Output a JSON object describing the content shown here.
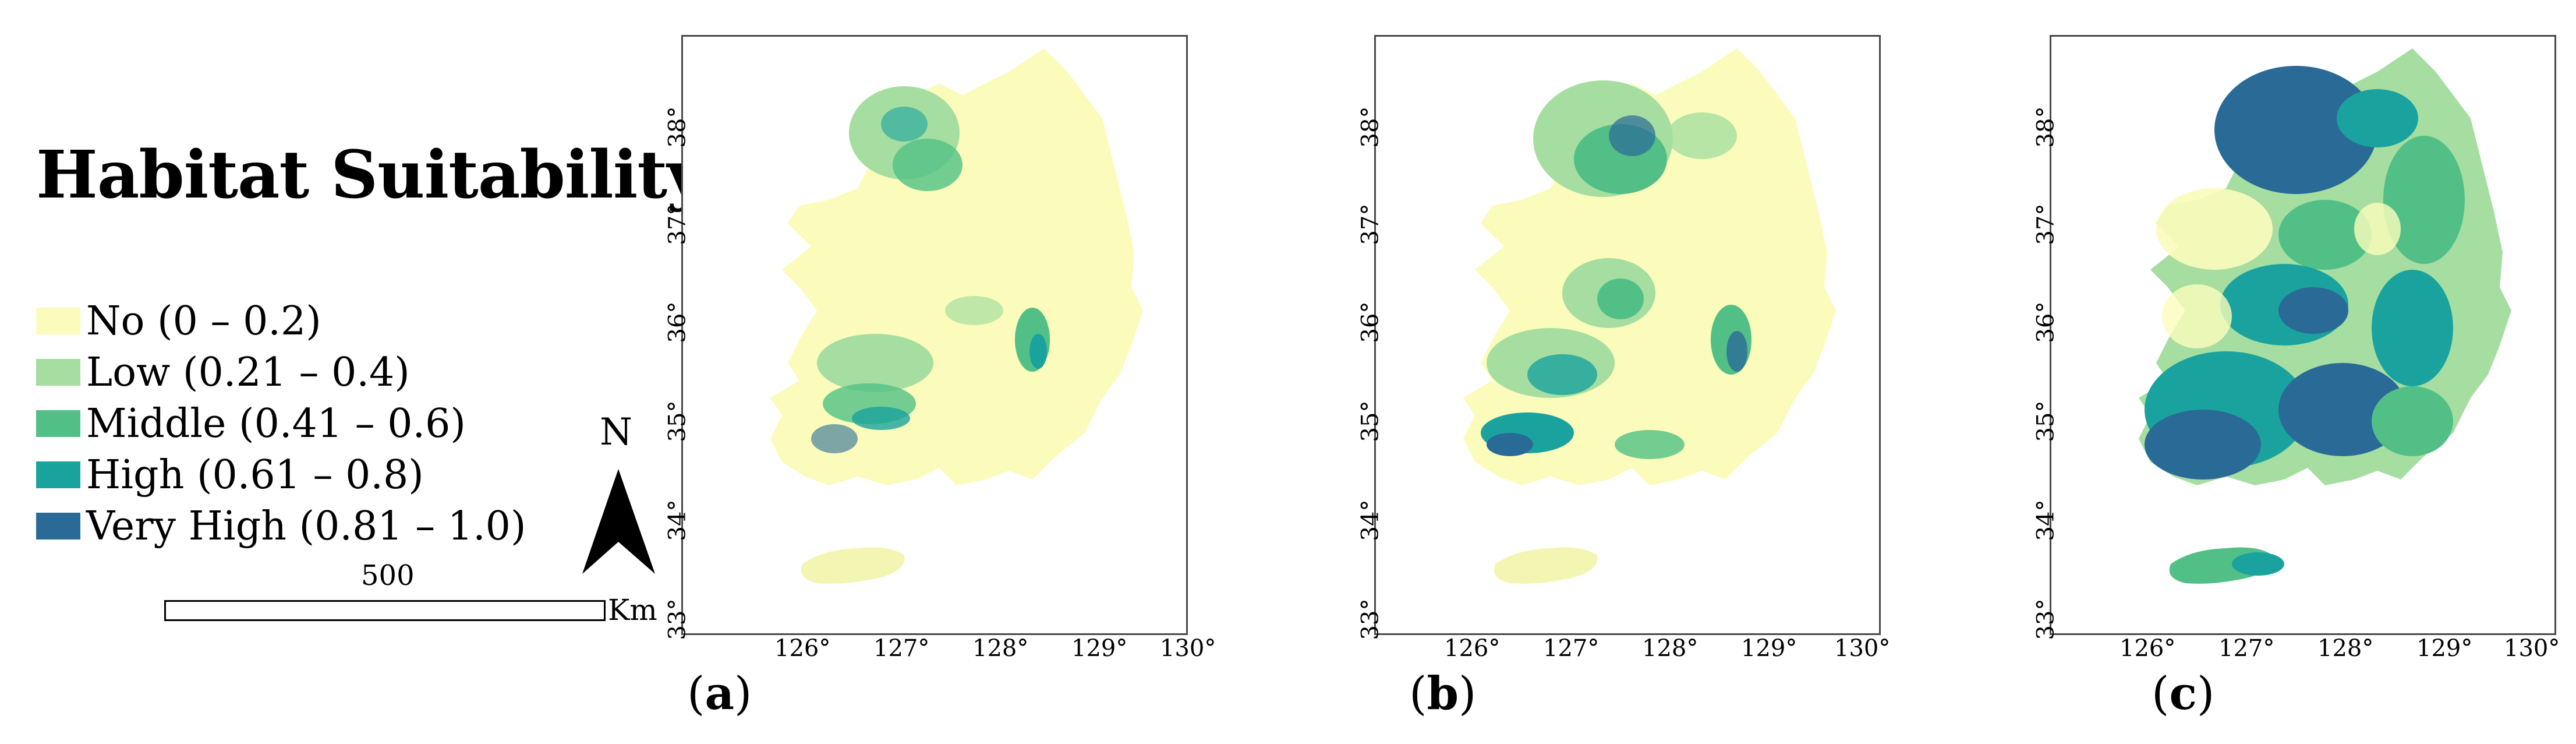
{
  "legend": {
    "title": "Habitat Suitability",
    "items": [
      {
        "label": "No (0 – 0.2)",
        "color": "#fbfcbb"
      },
      {
        "label": "Low (0.21 – 0.4)",
        "color": "#a5dea0"
      },
      {
        "label": "Middle (0.41 – 0.6)",
        "color": "#52c086"
      },
      {
        "label": "High (0.61 – 0.8)",
        "color": "#1aa39e"
      },
      {
        "label": "Very High (0.81 – 1.0)",
        "color": "#2a6a97"
      }
    ]
  },
  "north_arrow": {
    "letter": "N"
  },
  "scale_bar": {
    "value": "500",
    "unit": "Km"
  },
  "axes": {
    "lat_ticks": [
      "33°",
      "34°",
      "35°",
      "36°",
      "37°",
      "38°"
    ],
    "lon_ticks": [
      "126°",
      "127°",
      "128°",
      "129°",
      "130°"
    ]
  },
  "panels": [
    {
      "label_open": "(",
      "label_letter": "a",
      "label_close": ")"
    },
    {
      "label_open": "(",
      "label_letter": "b",
      "label_close": ")"
    },
    {
      "label_open": "(",
      "label_letter": "c",
      "label_close": ")"
    }
  ]
}
